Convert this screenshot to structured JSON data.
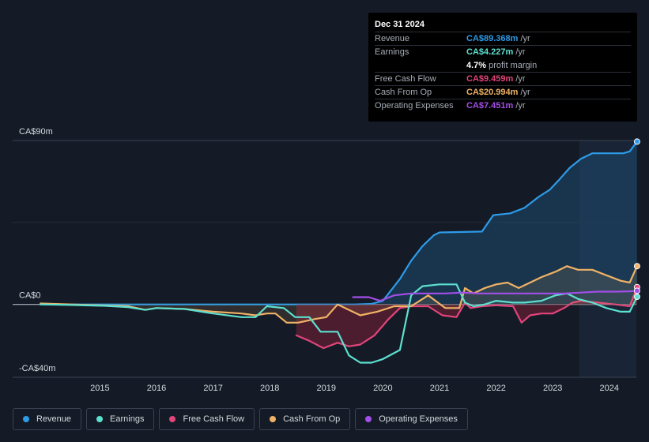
{
  "tooltip": {
    "date": "Dec 31 2024",
    "rows": [
      {
        "label": "Revenue",
        "value": "CA$89.368m",
        "unit": "/yr",
        "color": "#2d9be8"
      },
      {
        "label": "Earnings",
        "value": "CA$4.227m",
        "unit": "/yr",
        "color": "#5ce0d0"
      },
      {
        "label": "",
        "value": "4.7%",
        "unit": "profit margin",
        "color": "#ffffff"
      },
      {
        "label": "Free Cash Flow",
        "value": "CA$9.459m",
        "unit": "/yr",
        "color": "#e0457b"
      },
      {
        "label": "Cash From Op",
        "value": "CA$20.994m",
        "unit": "/yr",
        "color": "#f0b266"
      },
      {
        "label": "Operating Expenses",
        "value": "CA$7.451m",
        "unit": "/yr",
        "color": "#a24ee8"
      }
    ]
  },
  "legend": [
    {
      "label": "Revenue",
      "color": "#2d9be8"
    },
    {
      "label": "Earnings",
      "color": "#5ce0d0"
    },
    {
      "label": "Free Cash Flow",
      "color": "#e0457b"
    },
    {
      "label": "Cash From Op",
      "color": "#f0b266"
    },
    {
      "label": "Operating Expenses",
      "color": "#a24ee8"
    }
  ],
  "chart_data": {
    "type": "line",
    "title": "",
    "units": "CA$ millions",
    "ylim": [
      -40,
      90
    ],
    "y_tick_labels": [
      "CA$90m",
      "CA$0",
      "-CA$40m"
    ],
    "x_tick_labels": [
      "2015",
      "2016",
      "2017",
      "2018",
      "2019",
      "2020",
      "2021",
      "2022",
      "2023",
      "2024"
    ],
    "series": [
      {
        "name": "Revenue",
        "color": "#2d9be8",
        "fill": true,
        "points": [
          [
            2014.45,
            0
          ],
          [
            2015,
            0
          ],
          [
            2016,
            0
          ],
          [
            2017,
            0
          ],
          [
            2018,
            0
          ],
          [
            2019,
            0
          ],
          [
            2020,
            0
          ],
          [
            2020.3,
            0.3
          ],
          [
            2020.5,
            2
          ],
          [
            2020.8,
            14
          ],
          [
            2021.0,
            24
          ],
          [
            2021.2,
            32
          ],
          [
            2021.4,
            38
          ],
          [
            2021.5,
            39.5
          ],
          [
            2022.25,
            40
          ],
          [
            2022.45,
            49
          ],
          [
            2022.75,
            50
          ],
          [
            2023.0,
            53
          ],
          [
            2023.25,
            59
          ],
          [
            2023.45,
            63
          ],
          [
            2023.6,
            68
          ],
          [
            2023.8,
            75
          ],
          [
            2024.0,
            80
          ],
          [
            2024.2,
            83
          ],
          [
            2024.45,
            83
          ],
          [
            2024.75,
            83
          ],
          [
            2024.86,
            84
          ],
          [
            2024.99,
            89.4
          ]
        ]
      },
      {
        "name": "Earnings",
        "color": "#5ce0d0",
        "points": [
          [
            2014.45,
            0
          ],
          [
            2015,
            -0.3
          ],
          [
            2015.6,
            -0.8
          ],
          [
            2016.0,
            -1.5
          ],
          [
            2016.3,
            -3
          ],
          [
            2016.5,
            -2
          ],
          [
            2017.0,
            -2.5
          ],
          [
            2017.5,
            -5
          ],
          [
            2018.0,
            -7
          ],
          [
            2018.25,
            -7
          ],
          [
            2018.45,
            -1
          ],
          [
            2018.75,
            -2
          ],
          [
            2018.95,
            -7
          ],
          [
            2019.2,
            -7
          ],
          [
            2019.4,
            -15
          ],
          [
            2019.7,
            -15
          ],
          [
            2019.9,
            -28
          ],
          [
            2020.1,
            -32
          ],
          [
            2020.3,
            -32
          ],
          [
            2020.5,
            -30
          ],
          [
            2020.8,
            -25
          ],
          [
            2020.9,
            -10
          ],
          [
            2021.0,
            5
          ],
          [
            2021.2,
            10
          ],
          [
            2021.5,
            11
          ],
          [
            2021.8,
            11
          ],
          [
            2021.95,
            1
          ],
          [
            2022.1,
            -1
          ],
          [
            2022.3,
            0
          ],
          [
            2022.5,
            2
          ],
          [
            2022.8,
            1
          ],
          [
            2023.0,
            1
          ],
          [
            2023.3,
            2
          ],
          [
            2023.55,
            5
          ],
          [
            2023.75,
            6
          ],
          [
            2023.95,
            3
          ],
          [
            2024.2,
            1
          ],
          [
            2024.45,
            -2
          ],
          [
            2024.7,
            -4
          ],
          [
            2024.86,
            -4
          ],
          [
            2024.99,
            4.2
          ]
        ]
      },
      {
        "name": "Free Cash Flow",
        "color": "#e0457b",
        "fill": true,
        "points": [
          [
            2018.97,
            -17
          ],
          [
            2019.2,
            -20
          ],
          [
            2019.45,
            -24
          ],
          [
            2019.7,
            -21
          ],
          [
            2019.9,
            -23
          ],
          [
            2020.1,
            -22
          ],
          [
            2020.35,
            -17
          ],
          [
            2020.6,
            -8
          ],
          [
            2020.8,
            -2
          ],
          [
            2021.0,
            -1
          ],
          [
            2021.3,
            -1
          ],
          [
            2021.55,
            -6
          ],
          [
            2021.8,
            -7
          ],
          [
            2021.95,
            1
          ],
          [
            2022.05,
            -2
          ],
          [
            2022.25,
            -1
          ],
          [
            2022.5,
            -0.5
          ],
          [
            2022.8,
            -1
          ],
          [
            2022.95,
            -10
          ],
          [
            2023.1,
            -6
          ],
          [
            2023.3,
            -5
          ],
          [
            2023.5,
            -5
          ],
          [
            2023.7,
            -2
          ],
          [
            2023.85,
            1
          ],
          [
            2024.0,
            2
          ],
          [
            2024.3,
            1
          ],
          [
            2024.6,
            0
          ],
          [
            2024.86,
            -1
          ],
          [
            2024.99,
            9.5
          ]
        ]
      },
      {
        "name": "Cash From Op",
        "color": "#f0b266",
        "fill": true,
        "points": [
          [
            2014.45,
            0.5
          ],
          [
            2015,
            0
          ],
          [
            2016.0,
            -1
          ],
          [
            2016.3,
            -3
          ],
          [
            2016.5,
            -2
          ],
          [
            2017.0,
            -2.5
          ],
          [
            2017.5,
            -4
          ],
          [
            2018.0,
            -5
          ],
          [
            2018.25,
            -6
          ],
          [
            2018.45,
            -5
          ],
          [
            2018.6,
            -5
          ],
          [
            2018.8,
            -10
          ],
          [
            2019.0,
            -10
          ],
          [
            2019.3,
            -8
          ],
          [
            2019.5,
            -7
          ],
          [
            2019.7,
            0
          ],
          [
            2019.9,
            -3
          ],
          [
            2020.1,
            -6
          ],
          [
            2020.4,
            -4
          ],
          [
            2020.7,
            -1
          ],
          [
            2021.0,
            -1
          ],
          [
            2021.3,
            5
          ],
          [
            2021.6,
            -2
          ],
          [
            2021.85,
            -2
          ],
          [
            2021.95,
            9
          ],
          [
            2022.1,
            6
          ],
          [
            2022.3,
            9
          ],
          [
            2022.5,
            11
          ],
          [
            2022.7,
            12
          ],
          [
            2022.9,
            9
          ],
          [
            2023.1,
            12
          ],
          [
            2023.3,
            15
          ],
          [
            2023.55,
            18
          ],
          [
            2023.75,
            21
          ],
          [
            2023.95,
            19
          ],
          [
            2024.2,
            19
          ],
          [
            2024.45,
            16
          ],
          [
            2024.7,
            13
          ],
          [
            2024.86,
            12
          ],
          [
            2024.99,
            21
          ]
        ]
      },
      {
        "name": "Operating Expenses",
        "color": "#a24ee8",
        "points": [
          [
            2019.97,
            4
          ],
          [
            2020.25,
            4
          ],
          [
            2020.45,
            2
          ],
          [
            2020.7,
            5
          ],
          [
            2021.0,
            6
          ],
          [
            2021.3,
            6
          ],
          [
            2021.6,
            6
          ],
          [
            2021.9,
            6.5
          ],
          [
            2022.2,
            6
          ],
          [
            2022.5,
            6
          ],
          [
            2022.8,
            6
          ],
          [
            2023.1,
            6
          ],
          [
            2023.4,
            6
          ],
          [
            2023.7,
            6
          ],
          [
            2024.0,
            6.5
          ],
          [
            2024.3,
            7
          ],
          [
            2024.6,
            7
          ],
          [
            2024.86,
            7.2
          ],
          [
            2024.99,
            7.5
          ]
        ]
      }
    ]
  }
}
